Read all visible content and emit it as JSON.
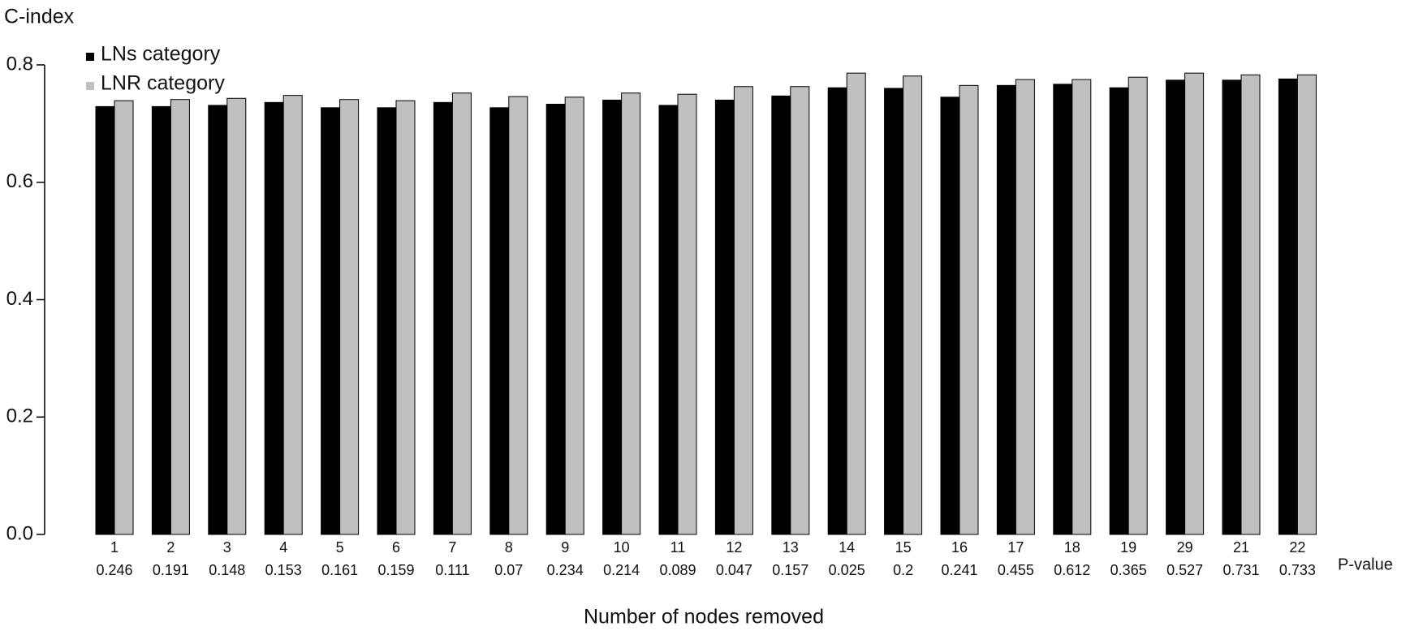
{
  "chart_data": {
    "type": "bar",
    "y_label": "C-index",
    "x_label": "Number of nodes removed",
    "p_label": "P-value",
    "categories": [
      "1",
      "2",
      "3",
      "4",
      "5",
      "6",
      "7",
      "8",
      "9",
      "10",
      "11",
      "12",
      "13",
      "14",
      "15",
      "16",
      "17",
      "18",
      "19",
      "29",
      "21",
      "22"
    ],
    "p_values": [
      0.246,
      0.191,
      0.148,
      0.153,
      0.161,
      0.159,
      0.111,
      0.07,
      0.234,
      0.214,
      0.089,
      0.047,
      0.157,
      0.025,
      0.2,
      0.241,
      0.455,
      0.612,
      0.365,
      0.527,
      0.731,
      0.733
    ],
    "series": [
      {
        "name": "LNs category",
        "color": "#000000",
        "values": [
          0.729,
          0.729,
          0.731,
          0.736,
          0.727,
          0.727,
          0.736,
          0.727,
          0.733,
          0.74,
          0.731,
          0.74,
          0.747,
          0.761,
          0.76,
          0.745,
          0.765,
          0.767,
          0.761,
          0.774,
          0.774,
          0.776
        ]
      },
      {
        "name": "LNR category",
        "color": "#c0c0c0",
        "values": [
          0.739,
          0.741,
          0.743,
          0.748,
          0.741,
          0.739,
          0.752,
          0.746,
          0.745,
          0.752,
          0.75,
          0.763,
          0.763,
          0.786,
          0.781,
          0.765,
          0.775,
          0.775,
          0.779,
          0.786,
          0.783,
          0.783
        ]
      }
    ],
    "ylim": [
      0,
      0.8
    ],
    "yticks": [
      {
        "value": 0,
        "label": "0.0"
      },
      0.2,
      0.4,
      0.6,
      0.8
    ]
  }
}
